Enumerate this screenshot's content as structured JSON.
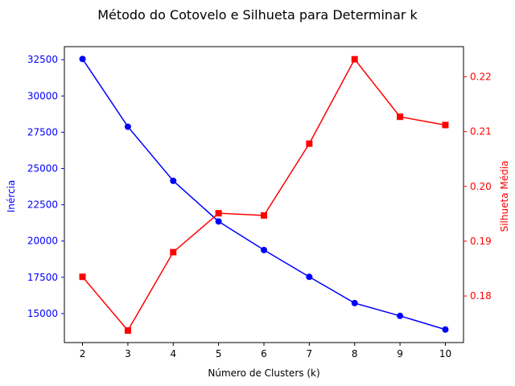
{
  "chart_data": {
    "type": "line",
    "title": "Método do Cotovelo e Silhueta para Determinar k",
    "xlabel": "Número de Clusters (k)",
    "ylabel_left": "Inércia",
    "ylabel_right": "Silhueta Média",
    "x": [
      2,
      3,
      4,
      5,
      6,
      7,
      8,
      9,
      10
    ],
    "xlim": [
      1.6,
      10.4
    ],
    "ylim_left": [
      13000,
      33400
    ],
    "ylim_right": [
      0.1715,
      0.2255
    ],
    "xticks": [
      "2",
      "3",
      "4",
      "5",
      "6",
      "7",
      "8",
      "9",
      "10"
    ],
    "yticks_left": [
      "15000",
      "17500",
      "20000",
      "22500",
      "25000",
      "27500",
      "30000",
      "32500"
    ],
    "yticks_right": [
      "0.18",
      "0.19",
      "0.20",
      "0.21",
      "0.22"
    ],
    "legend": "none",
    "grid": false,
    "series": [
      {
        "axis": "left",
        "color": "#0000ff",
        "marker": "circle",
        "values": [
          32550,
          27880,
          24150,
          21350,
          19380,
          17530,
          15720,
          14840,
          13900
        ]
      },
      {
        "axis": "right",
        "color": "#ff0000",
        "marker": "square",
        "values": [
          0.1835,
          0.1737,
          0.188,
          0.1951,
          0.1947,
          0.2078,
          0.2232,
          0.2127,
          0.2112
        ]
      }
    ],
    "colors": {
      "left_axis": "#0000ff",
      "right_axis": "#ff0000",
      "frame": "#000000"
    }
  }
}
